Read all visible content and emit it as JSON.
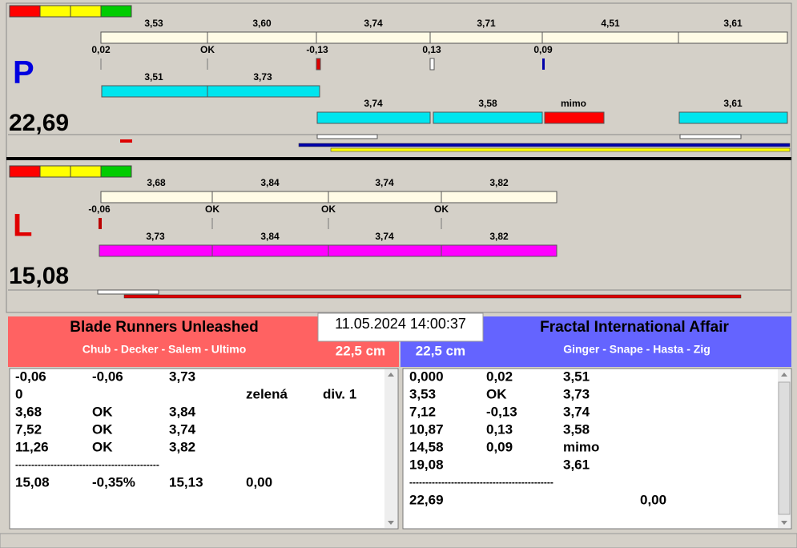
{
  "top": {
    "p": {
      "letter": "P",
      "total": "22,69",
      "jumps": [
        "3,53",
        "3,60",
        "3,74",
        "3,71",
        "4,51",
        "3,61"
      ],
      "diffs": [
        "0,02",
        "OK",
        "-0,13",
        "0,13",
        "0,09"
      ],
      "row2": [
        "3,51",
        "3,73"
      ],
      "row3": [
        "3,74",
        "3,58",
        "mimo",
        "3,61"
      ]
    },
    "l": {
      "letter": "L",
      "total": "15,08",
      "jumps": [
        "3,68",
        "3,84",
        "3,74",
        "3,82"
      ],
      "diffs": [
        "-0,06",
        "OK",
        "OK",
        "OK"
      ],
      "row2": [
        "3,73",
        "3,84",
        "3,74",
        "3,82"
      ]
    }
  },
  "timestamp": "11.05.2024 14:00:37",
  "left_team": {
    "name": "Blade Runners Unleashed",
    "players": "Chub - Decker - Salem - Ultimo",
    "distance": "22,5 cm",
    "rows": [
      [
        "-0,06",
        "-0,06",
        "3,73",
        null,
        null
      ],
      [
        "0",
        null,
        null,
        "zelená",
        "div. 1"
      ],
      [
        "3,68",
        "OK",
        "3,84",
        null,
        null
      ],
      [
        "7,52",
        "OK",
        "3,74",
        null,
        null
      ],
      [
        "11,26",
        "OK",
        "3,82",
        null,
        null
      ]
    ],
    "separator": "---------------------------------------------",
    "summary": [
      "15,08",
      "-0,35%",
      "15,13",
      "0,00"
    ]
  },
  "right_team": {
    "name": "Fractal International Affair",
    "players": "Ginger - Snape - Hasta - Zig",
    "distance": "22,5 cm",
    "rows": [
      [
        "0,000",
        "0,02",
        "3,51"
      ],
      [
        "3,53",
        "OK",
        "3,73"
      ],
      [
        "7,12",
        "-0,13",
        "3,74"
      ],
      [
        "10,87",
        "0,13",
        "3,58"
      ],
      [
        "14,58",
        "0,09",
        "mimo"
      ],
      [
        "19,08",
        null,
        "3,61"
      ]
    ],
    "separator": "---------------------------------------------",
    "summary": [
      "22,69",
      null,
      null,
      "0,00"
    ]
  }
}
